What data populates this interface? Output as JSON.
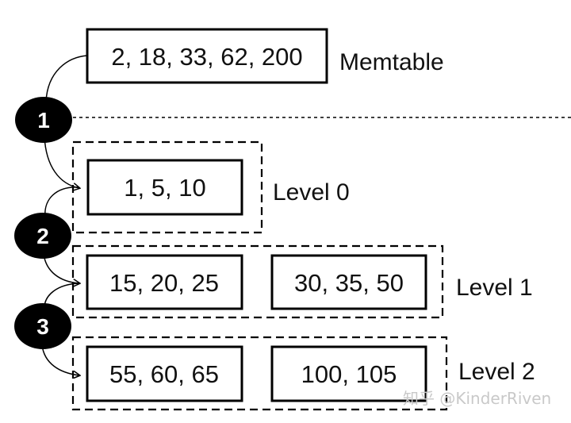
{
  "memtable": {
    "values": "2, 18, 33, 62, 200",
    "label": "Memtable"
  },
  "levels": [
    {
      "label": "Level 0",
      "tables": [
        "1, 5, 10"
      ]
    },
    {
      "label": "Level 1",
      "tables": [
        "15, 20, 25",
        "30, 35, 50"
      ]
    },
    {
      "label": "Level 2",
      "tables": [
        "55, 60, 65",
        "100, 105"
      ]
    }
  ],
  "steps": [
    "1",
    "2",
    "3"
  ],
  "watermark": "知乎 @KinderRiven",
  "colors": {
    "ink": "#000000",
    "step_fill": "#000000",
    "step_text": "#ffffff",
    "watermark": "#c9c9c9"
  }
}
